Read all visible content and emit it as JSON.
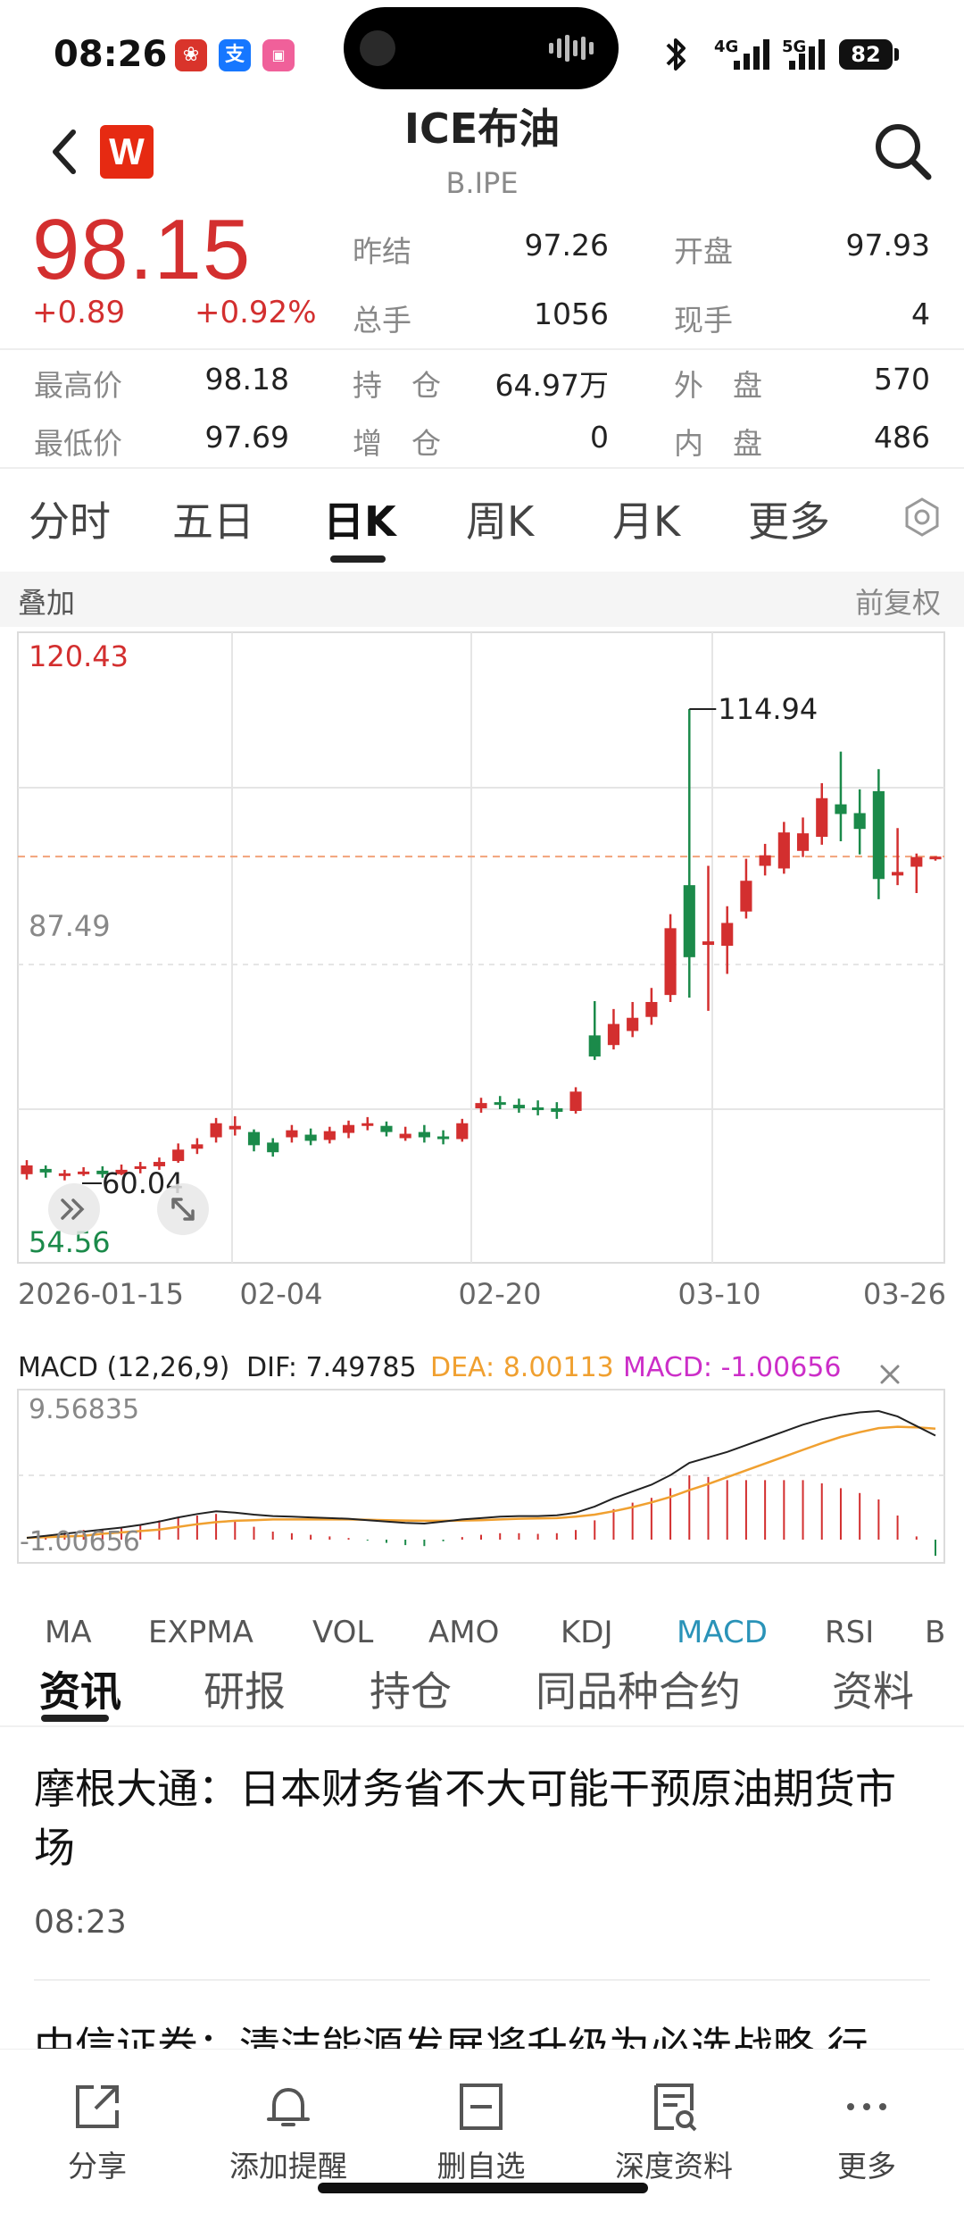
{
  "status_bar": {
    "time": "08:26",
    "network_1": "4G",
    "network_2": "5G",
    "battery": "82",
    "app_icon_2": "支"
  },
  "header": {
    "logo_letter": "W",
    "title": "ICE布油",
    "subtitle": "B.IPE",
    "icons": [
      "back-icon",
      "search-icon"
    ]
  },
  "quote": {
    "price": "98.15",
    "change": "+0.89",
    "change_pct": "+0.92%",
    "prev_close_label": "昨结",
    "prev_close": "97.26",
    "open_label": "开盘",
    "open": "97.93",
    "volume_label": "总手",
    "volume": "1056",
    "current_label": "现手",
    "current": "4",
    "high_label": "最高价",
    "high": "98.18",
    "oi_label": "持　仓",
    "oi": "64.97万",
    "outer_label": "外　盘",
    "outer": "570",
    "low_label": "最低价",
    "low": "97.69",
    "oi_chg_label": "增　仓",
    "oi_chg": "0",
    "inner_label": "内　盘",
    "inner": "486"
  },
  "period_tabs": [
    "分时",
    "五日",
    "日K",
    "周K",
    "月K",
    "更多"
  ],
  "active_period": "日K",
  "chart_toolbar": {
    "overlay": "叠加",
    "adjust": "前复权"
  },
  "chart_data": [
    {
      "type": "candlestick",
      "title": "",
      "ylim": [
        54.56,
        120.43
      ],
      "y_labels": [
        "120.43",
        "87.49",
        "54.56"
      ],
      "x_labels": [
        "2026-01-15",
        "02-04",
        "02-20",
        "03-10",
        "03-26"
      ],
      "annotations": {
        "max_label": "114.94",
        "min_label": "60.04",
        "current_price": 98.15
      },
      "candles": [
        {
          "o": 62.0,
          "c": 63.0,
          "h": 63.6,
          "l": 61.4
        },
        {
          "o": 62.6,
          "c": 62.2,
          "h": 63.0,
          "l": 61.6
        },
        {
          "o": 61.9,
          "c": 62.1,
          "h": 62.5,
          "l": 61.3
        },
        {
          "o": 62.1,
          "c": 62.3,
          "h": 62.8,
          "l": 61.8
        },
        {
          "o": 62.4,
          "c": 62.0,
          "h": 62.9,
          "l": 61.6
        },
        {
          "o": 62.0,
          "c": 62.5,
          "h": 63.1,
          "l": 61.9
        },
        {
          "o": 62.6,
          "c": 62.9,
          "h": 63.4,
          "l": 62.1
        },
        {
          "o": 62.9,
          "c": 63.4,
          "h": 63.9,
          "l": 62.5
        },
        {
          "o": 63.5,
          "c": 64.8,
          "h": 65.5,
          "l": 63.3
        },
        {
          "o": 64.9,
          "c": 65.4,
          "h": 66.1,
          "l": 64.3
        },
        {
          "o": 66.2,
          "c": 67.8,
          "h": 68.4,
          "l": 65.6
        },
        {
          "o": 67.1,
          "c": 67.5,
          "h": 68.6,
          "l": 66.4
        },
        {
          "o": 66.8,
          "c": 65.3,
          "h": 67.1,
          "l": 64.6
        },
        {
          "o": 65.6,
          "c": 64.5,
          "h": 66.1,
          "l": 64.0
        },
        {
          "o": 66.2,
          "c": 67.0,
          "h": 67.6,
          "l": 65.6
        },
        {
          "o": 66.5,
          "c": 65.8,
          "h": 67.2,
          "l": 65.3
        },
        {
          "o": 65.9,
          "c": 66.9,
          "h": 67.4,
          "l": 65.5
        },
        {
          "o": 66.7,
          "c": 67.6,
          "h": 68.1,
          "l": 66.1
        },
        {
          "o": 67.6,
          "c": 67.8,
          "h": 68.5,
          "l": 67.0
        },
        {
          "o": 67.5,
          "c": 66.8,
          "h": 68.0,
          "l": 66.3
        },
        {
          "o": 66.1,
          "c": 66.6,
          "h": 67.4,
          "l": 65.8
        },
        {
          "o": 66.8,
          "c": 66.2,
          "h": 67.6,
          "l": 65.6
        },
        {
          "o": 66.3,
          "c": 66.1,
          "h": 67.0,
          "l": 65.4
        },
        {
          "o": 66.0,
          "c": 67.8,
          "h": 68.3,
          "l": 65.7
        },
        {
          "o": 69.5,
          "c": 70.1,
          "h": 70.7,
          "l": 69.0
        },
        {
          "o": 70.2,
          "c": 69.9,
          "h": 70.9,
          "l": 69.4
        },
        {
          "o": 69.9,
          "c": 69.5,
          "h": 70.6,
          "l": 69.0
        },
        {
          "o": 69.6,
          "c": 69.4,
          "h": 70.4,
          "l": 68.7
        },
        {
          "o": 69.5,
          "c": 69.1,
          "h": 70.2,
          "l": 68.3
        },
        {
          "o": 69.2,
          "c": 71.4,
          "h": 71.9,
          "l": 68.9
        },
        {
          "o": 77.8,
          "c": 75.4,
          "h": 81.7,
          "l": 75.0
        },
        {
          "o": 76.7,
          "c": 79.1,
          "h": 80.8,
          "l": 76.2
        },
        {
          "o": 78.3,
          "c": 79.8,
          "h": 81.6,
          "l": 77.6
        },
        {
          "o": 79.9,
          "c": 81.6,
          "h": 83.2,
          "l": 79.0
        },
        {
          "o": 82.4,
          "c": 90.0,
          "h": 91.6,
          "l": 81.6
        },
        {
          "o": 94.9,
          "c": 86.7,
          "h": 114.94,
          "l": 82.1
        },
        {
          "o": 88.1,
          "c": 88.5,
          "h": 97.1,
          "l": 80.6
        },
        {
          "o": 88.0,
          "c": 90.6,
          "h": 92.5,
          "l": 84.8
        },
        {
          "o": 91.9,
          "c": 95.4,
          "h": 97.9,
          "l": 91.1
        },
        {
          "o": 97.1,
          "c": 98.3,
          "h": 99.6,
          "l": 96.0
        },
        {
          "o": 96.8,
          "c": 100.9,
          "h": 102.1,
          "l": 96.2
        },
        {
          "o": 98.8,
          "c": 100.8,
          "h": 102.6,
          "l": 98.1
        },
        {
          "o": 100.4,
          "c": 104.8,
          "h": 106.5,
          "l": 99.5
        },
        {
          "o": 104.1,
          "c": 103.0,
          "h": 110.1,
          "l": 99.9
        },
        {
          "o": 103.1,
          "c": 101.3,
          "h": 105.8,
          "l": 98.4
        },
        {
          "o": 105.6,
          "c": 95.6,
          "h": 108.1,
          "l": 93.3
        },
        {
          "o": 96.0,
          "c": 96.4,
          "h": 101.4,
          "l": 94.9
        },
        {
          "o": 97.0,
          "c": 98.1,
          "h": 98.5,
          "l": 94.0
        },
        {
          "o": 97.9,
          "c": 98.15,
          "h": 98.18,
          "l": 97.69
        }
      ]
    },
    {
      "type": "line",
      "title": "MACD (12,26,9)",
      "ylim": [
        -1.00656,
        9.56835
      ],
      "y_labels": [
        "9.56835",
        "-1.00656"
      ],
      "legend": {
        "dif": "DIF: 7.49785",
        "dea": "DEA: 8.00113",
        "macd": "MACD: -1.00656"
      },
      "colors": {
        "dif": "#222222",
        "dea": "#f0a030",
        "macd_up": "#d32f2f",
        "macd_down": "#1b8a4a",
        "macd_label": "#cc2ec8"
      },
      "series": [
        {
          "name": "DIF",
          "values": [
            0.0,
            0.15,
            0.3,
            0.45,
            0.6,
            0.75,
            0.95,
            1.2,
            1.5,
            1.75,
            1.95,
            1.85,
            1.7,
            1.6,
            1.55,
            1.5,
            1.45,
            1.4,
            1.3,
            1.2,
            1.1,
            1.05,
            1.2,
            1.35,
            1.45,
            1.55,
            1.6,
            1.6,
            1.65,
            1.85,
            2.3,
            2.9,
            3.4,
            3.9,
            4.6,
            5.5,
            5.9,
            6.3,
            6.8,
            7.3,
            7.8,
            8.3,
            8.7,
            9.0,
            9.2,
            9.3,
            8.9,
            8.2,
            7.5
          ]
        },
        {
          "name": "DEA",
          "values": [
            0.0,
            0.05,
            0.1,
            0.15,
            0.3,
            0.4,
            0.5,
            0.6,
            0.8,
            1.0,
            1.15,
            1.25,
            1.3,
            1.35,
            1.35,
            1.35,
            1.35,
            1.35,
            1.33,
            1.3,
            1.27,
            1.25,
            1.25,
            1.27,
            1.3,
            1.35,
            1.4,
            1.42,
            1.45,
            1.55,
            1.7,
            1.95,
            2.25,
            2.6,
            3.0,
            3.5,
            3.95,
            4.45,
            4.95,
            5.45,
            5.95,
            6.45,
            6.95,
            7.4,
            7.75,
            8.05,
            8.15,
            8.1,
            8.0
          ]
        },
        {
          "name": "MACD",
          "values": [
            0.0,
            0.2,
            0.4,
            0.6,
            0.6,
            0.7,
            0.9,
            1.2,
            1.4,
            1.5,
            1.6,
            1.2,
            0.8,
            0.5,
            0.4,
            0.3,
            0.2,
            0.1,
            -0.06,
            -0.2,
            -0.34,
            -0.4,
            -0.1,
            0.16,
            0.3,
            0.4,
            0.4,
            0.36,
            0.4,
            0.6,
            1.2,
            1.9,
            2.3,
            2.6,
            3.2,
            4.0,
            3.9,
            3.7,
            3.7,
            3.7,
            3.7,
            3.7,
            3.5,
            3.2,
            2.9,
            2.5,
            1.5,
            0.2,
            -1.00656
          ]
        }
      ]
    }
  ],
  "indicator_tabs": [
    "MA",
    "EXPMA",
    "VOL",
    "AMO",
    "KDJ",
    "MACD",
    "RSI",
    "B"
  ],
  "active_indicator": "MACD",
  "content_tabs": [
    "资讯",
    "研报",
    "持仓",
    "同品种合约",
    "资料"
  ],
  "active_content": "资讯",
  "news": [
    {
      "title": "摩根大通：日本财务省不大可能干预原油期货市场",
      "time": "08:23"
    },
    {
      "title": "中信证券：清洁能源发展将升级为必选战略 行",
      "time": ""
    }
  ],
  "toolbar": [
    {
      "label": "分享",
      "icon": "share-icon"
    },
    {
      "label": "添加提醒",
      "icon": "bell-icon"
    },
    {
      "label": "删自选",
      "icon": "remove-watchlist-icon"
    },
    {
      "label": "深度资料",
      "icon": "document-icon"
    },
    {
      "label": "更多",
      "icon": "more-icon"
    }
  ]
}
